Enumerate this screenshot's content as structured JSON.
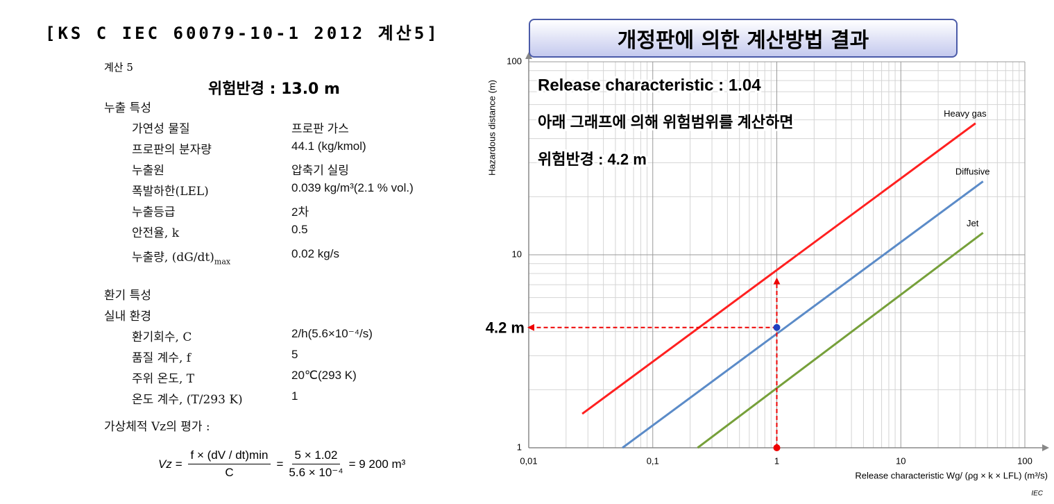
{
  "document": {
    "title": "[KS C IEC 60079-10-1 2012 계산5]",
    "calc_label": "계산 5",
    "result": "위험반경 : 13.0 m",
    "sections": [
      {
        "heading": "누출 특성",
        "rows": [
          {
            "label": "가연성 물질",
            "value": "프로판 가스"
          },
          {
            "label": "프로판의 분자량",
            "value": "44.1 (kg/kmol)"
          },
          {
            "label": "누출원",
            "value": "압축기 실링"
          },
          {
            "label": "폭발하한(LEL)",
            "value": "0.039 kg/m³(2.1 % vol.)"
          },
          {
            "label": "누출등급",
            "value": "2차"
          },
          {
            "label": "안전율, k",
            "value": "0.5"
          },
          {
            "label": "누출량, (dG/dt)",
            "label_sub": "max",
            "value": "0.02 kg/s"
          }
        ]
      },
      {
        "heading": "환기 특성",
        "subheading": "실내 환경",
        "rows": [
          {
            "label": "환기회수, C",
            "value": "2/h(5.6×10⁻⁴/s)"
          },
          {
            "label": "품질 계수, f",
            "value": "5"
          },
          {
            "label": "주위 온도, T",
            "value": "20℃(293 K)"
          },
          {
            "label": "온도 계수, (T/293 K)",
            "value": "1"
          }
        ]
      }
    ],
    "evaluation": "가상체적 Vz의 평가 :",
    "formula": {
      "lhs": "Vz =",
      "num1": "f × (dV / dt)min",
      "den1": "C",
      "eq": "=",
      "num2": "5 × 1.02",
      "den2": "5.6 × 10⁻⁴",
      "result": "= 9 200 m³"
    }
  },
  "banner": "개정판에 의한 계산방법 결과",
  "chart_data": {
    "type": "line",
    "xlabel": "Release characteristic Wg/ (ρg × k × LFL)   (m³/s)",
    "ylabel": "Hazardous distance   (m)",
    "xscale": "log",
    "yscale": "log",
    "xlim": [
      0.01,
      100
    ],
    "ylim": [
      1,
      100
    ],
    "xticks": [
      {
        "value": 0.01,
        "label": "0,01"
      },
      {
        "value": 0.1,
        "label": "0,1"
      },
      1,
      10,
      100
    ],
    "yticks": [
      1,
      10,
      100
    ],
    "grid": true,
    "minor_grid": true,
    "series": [
      {
        "name": "Heavy gas",
        "color": "#ff2020",
        "x": [
          0.027,
          40
        ],
        "values": [
          1.5,
          48
        ]
      },
      {
        "name": "Diffusive",
        "color": "#5b8bc8",
        "x": [
          0.057,
          46
        ],
        "values": [
          1,
          24
        ]
      },
      {
        "name": "Jet",
        "color": "#76a03a",
        "x": [
          0.23,
          46
        ],
        "values": [
          1,
          13
        ]
      }
    ],
    "annotations": [
      "Release characteristic : 1.04",
      "아래 그래프에 의해 위험범위를 계산하면",
      "위험반경 : 4.2 m"
    ],
    "reading": {
      "x": 1,
      "y": 4.2,
      "label": "4.2 m"
    },
    "source": "IEC"
  }
}
